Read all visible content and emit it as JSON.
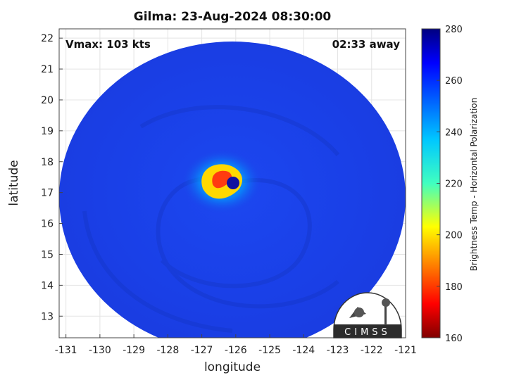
{
  "chart_data": {
    "type": "heatmap",
    "title": "Gilma: 23-Aug-2024 08:30:00",
    "xlabel": "longitude",
    "ylabel": "latitude",
    "xlim": [
      -131.2,
      -121
    ],
    "ylim": [
      12.3,
      22.3
    ],
    "xticks": [
      -131,
      -130,
      -129,
      -128,
      -127,
      -126,
      -125,
      -124,
      -123,
      -122,
      -121
    ],
    "yticks": [
      13,
      14,
      15,
      16,
      17,
      18,
      19,
      20,
      21,
      22
    ],
    "grid": true,
    "annotations": {
      "vmax": "Vmax: 103 kts",
      "time_offset": "02:33 away"
    },
    "storm_center": {
      "lon": -126.3,
      "lat": 17.25
    },
    "colorbar": {
      "label": "Brightness Temp - Horizontal Polarization",
      "min": 160,
      "max": 280,
      "ticks": [
        160,
        180,
        200,
        220,
        240,
        260,
        280
      ],
      "colormap": "jet"
    },
    "logo_text": "CIMSS"
  },
  "colors": {
    "background_field": "#1a3fe6",
    "eye": "#1010a0",
    "eyewall_warm": "#ff3b10"
  }
}
